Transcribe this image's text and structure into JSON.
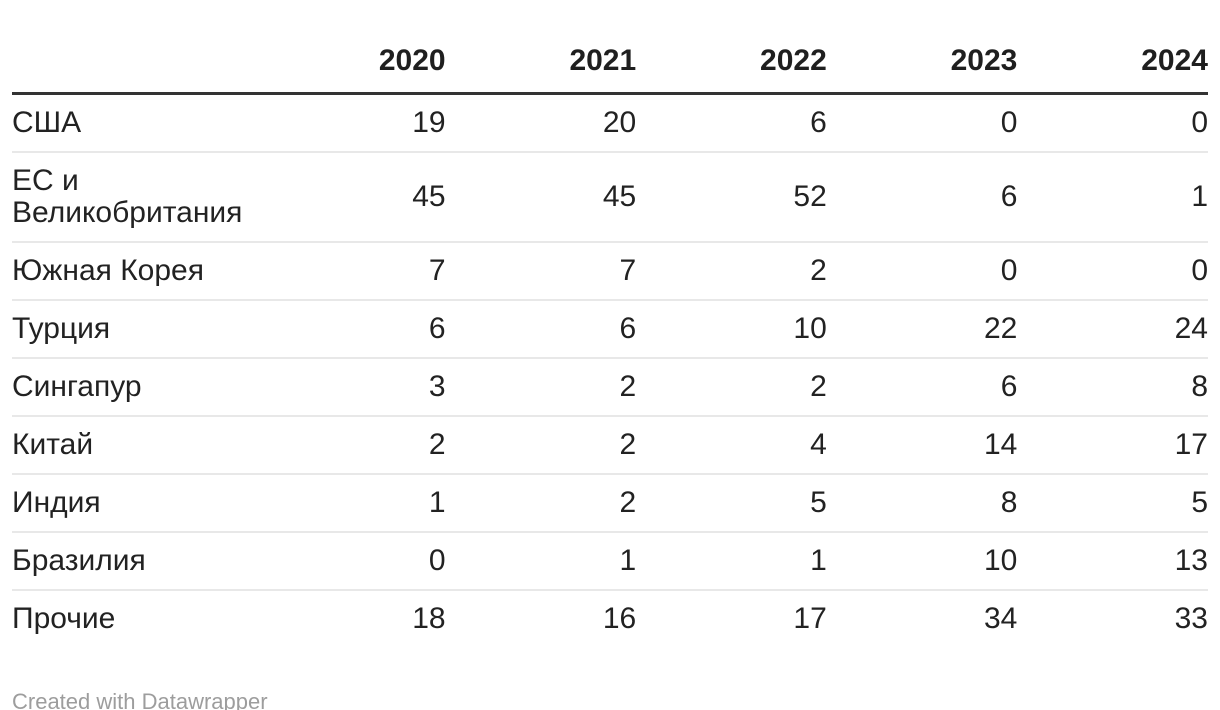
{
  "chart_data": {
    "type": "table",
    "columns": [
      "",
      "2020",
      "2021",
      "2022",
      "2023",
      "2024"
    ],
    "rows": [
      {
        "label": "США",
        "values": [
          19,
          20,
          6,
          0,
          0
        ]
      },
      {
        "label": "ЕС и Великобритания",
        "values": [
          45,
          45,
          52,
          6,
          1
        ]
      },
      {
        "label": "Южная Корея",
        "values": [
          7,
          7,
          2,
          0,
          0
        ]
      },
      {
        "label": "Турция",
        "values": [
          6,
          6,
          10,
          22,
          24
        ]
      },
      {
        "label": "Сингапур",
        "values": [
          3,
          2,
          2,
          6,
          8
        ]
      },
      {
        "label": "Китай",
        "values": [
          2,
          2,
          4,
          14,
          17
        ]
      },
      {
        "label": "Индия",
        "values": [
          1,
          2,
          5,
          8,
          5
        ]
      },
      {
        "label": "Бразилия",
        "values": [
          0,
          1,
          1,
          10,
          13
        ]
      },
      {
        "label": "Прочие",
        "values": [
          18,
          16,
          17,
          34,
          33
        ]
      }
    ],
    "layout": {
      "legend": "none",
      "grid": "horizontal-dividers",
      "number_alignment": "right"
    }
  },
  "footer": {
    "credit": "Created with Datawrapper"
  },
  "colors": {
    "background": "#ffffff",
    "text": "#222222",
    "header_text": "#1f1f1f",
    "header_rule": "#333333",
    "row_divider": "#e8e8e8",
    "credit_text": "#9d9d9d"
  }
}
